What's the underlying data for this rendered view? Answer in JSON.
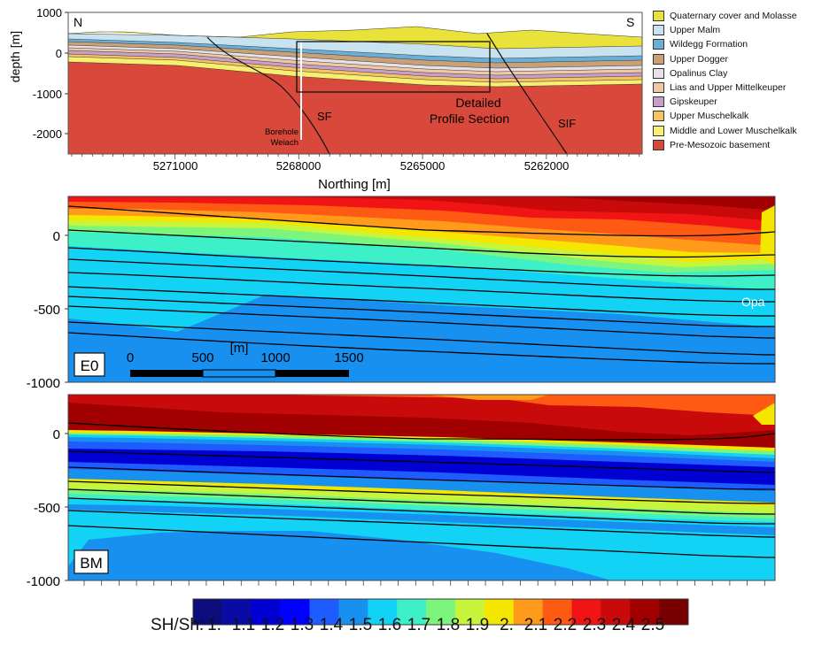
{
  "chart_data": [
    {
      "type": "cross-section",
      "ylabel": "depth [m]",
      "xlabel": "Northing [m]",
      "y_ticks": [
        "1000",
        "0",
        "-1000",
        "-2000"
      ],
      "x_ticks": [
        "5271000",
        "5268000",
        "5265000",
        "5262000"
      ],
      "ylim": [
        -2500,
        1000
      ],
      "corner_labels": {
        "left": "N",
        "right": "S"
      },
      "annotations": {
        "borehole": "Borehole\nWeiach",
        "fault_sf": "SF",
        "fault_sif": "SIF",
        "detail_box": "Detailed\nProfile Section"
      },
      "legend": [
        {
          "label": "Quaternary cover and Molasse",
          "color": "#e8e23a"
        },
        {
          "label": "Upper Malm",
          "color": "#c9e2f0"
        },
        {
          "label": "Wildegg Formation",
          "color": "#6aafd8"
        },
        {
          "label": "Upper Dogger",
          "color": "#c8a178"
        },
        {
          "label": "Opalinus Clay",
          "color": "#e6e1e7"
        },
        {
          "label": "Lias and Upper Mittelkeuper",
          "color": "#efc9a4"
        },
        {
          "label": "Gipskeuper",
          "color": "#c79fc8"
        },
        {
          "label": "Upper Muschelkalk",
          "color": "#f5c264"
        },
        {
          "label": "Middle and Lower Muschelkalk",
          "color": "#f8ee70"
        },
        {
          "label": "Pre-Mesozoic basement",
          "color": "#d9493b"
        }
      ]
    },
    {
      "type": "heatmap",
      "panel": "E0",
      "y_ticks": [
        "0",
        "-500",
        "-1000"
      ],
      "ylim": [
        -1000,
        200
      ],
      "annotation": "Opa",
      "scalebar": {
        "unit": "[m]",
        "ticks": [
          "0",
          "500",
          "1000",
          "1500"
        ]
      }
    },
    {
      "type": "heatmap",
      "panel": "BM",
      "y_ticks": [
        "0",
        "-500",
        "-1000"
      ],
      "ylim": [
        -1000,
        200
      ]
    }
  ],
  "colorbar": {
    "label": "SH/Sh:",
    "ticks": [
      "1.",
      "1.1",
      "1.2",
      "1.3",
      "1.4",
      "1.5",
      "1.6",
      "1.7",
      "1.8",
      "1.9",
      "2.",
      "2.1",
      "2.2",
      "2.3",
      "2.4",
      "2.5"
    ],
    "colors": [
      "#0c0c7a",
      "#0a0aa5",
      "#0000d2",
      "#0000ff",
      "#1e5cff",
      "#1890f0",
      "#12d2f5",
      "#3ef0c8",
      "#7cf57c",
      "#c8f53c",
      "#f5e600",
      "#ff9a1a",
      "#ff5a14",
      "#f01414",
      "#c80a0a",
      "#a00000",
      "#780000"
    ]
  }
}
